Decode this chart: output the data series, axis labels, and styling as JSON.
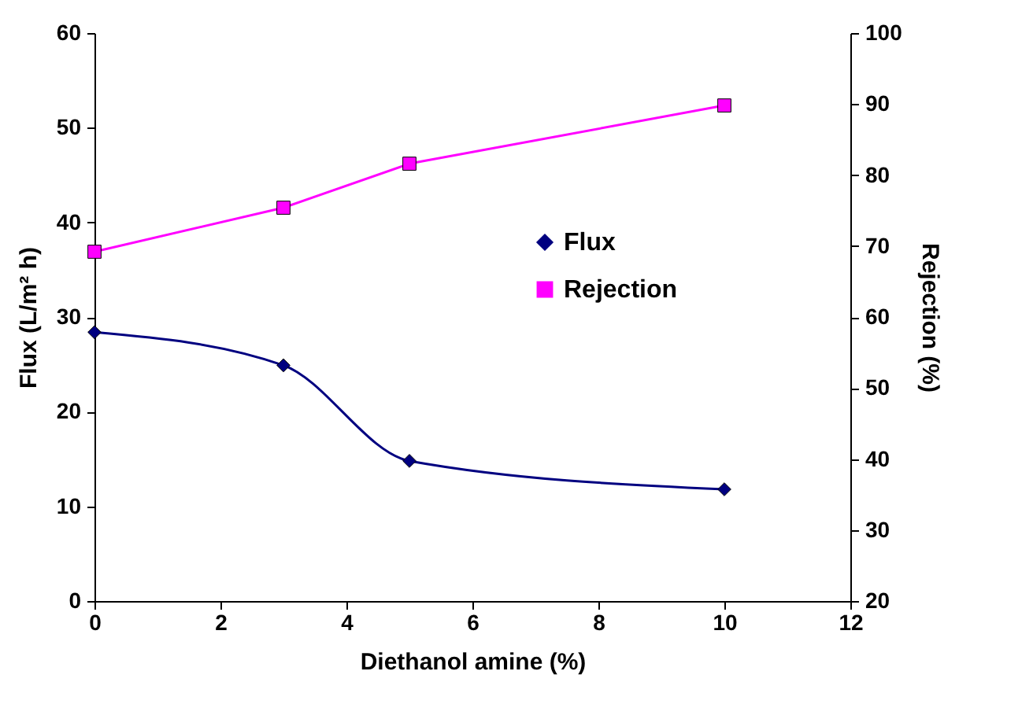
{
  "chart_data": {
    "type": "line",
    "xlabel": "Diethanol amine (%)",
    "ylabel": "Flux (L/m² h)",
    "y2label": "Rejection (%)",
    "x": [
      0,
      3,
      5,
      10
    ],
    "series": [
      {
        "name": "Flux",
        "color": "#000080",
        "marker": "diamond",
        "values": [
          28.4,
          24.9,
          14.8,
          11.8
        ]
      },
      {
        "name": "Rejection",
        "color": "#ff00ff",
        "marker": "square",
        "axis": "y2",
        "values": [
          69.2,
          75.4,
          81.6,
          89.8
        ]
      }
    ],
    "xlim": [
      0,
      12
    ],
    "xticks": [
      0,
      2,
      4,
      6,
      8,
      10,
      12
    ],
    "ylim": [
      0,
      60
    ],
    "yticks": [
      0,
      10,
      20,
      30,
      40,
      50,
      60
    ],
    "y2lim": [
      20,
      100
    ],
    "y2ticks": [
      20,
      30,
      40,
      50,
      60,
      70,
      80,
      90,
      100
    ],
    "legend": "right",
    "grid": false
  }
}
